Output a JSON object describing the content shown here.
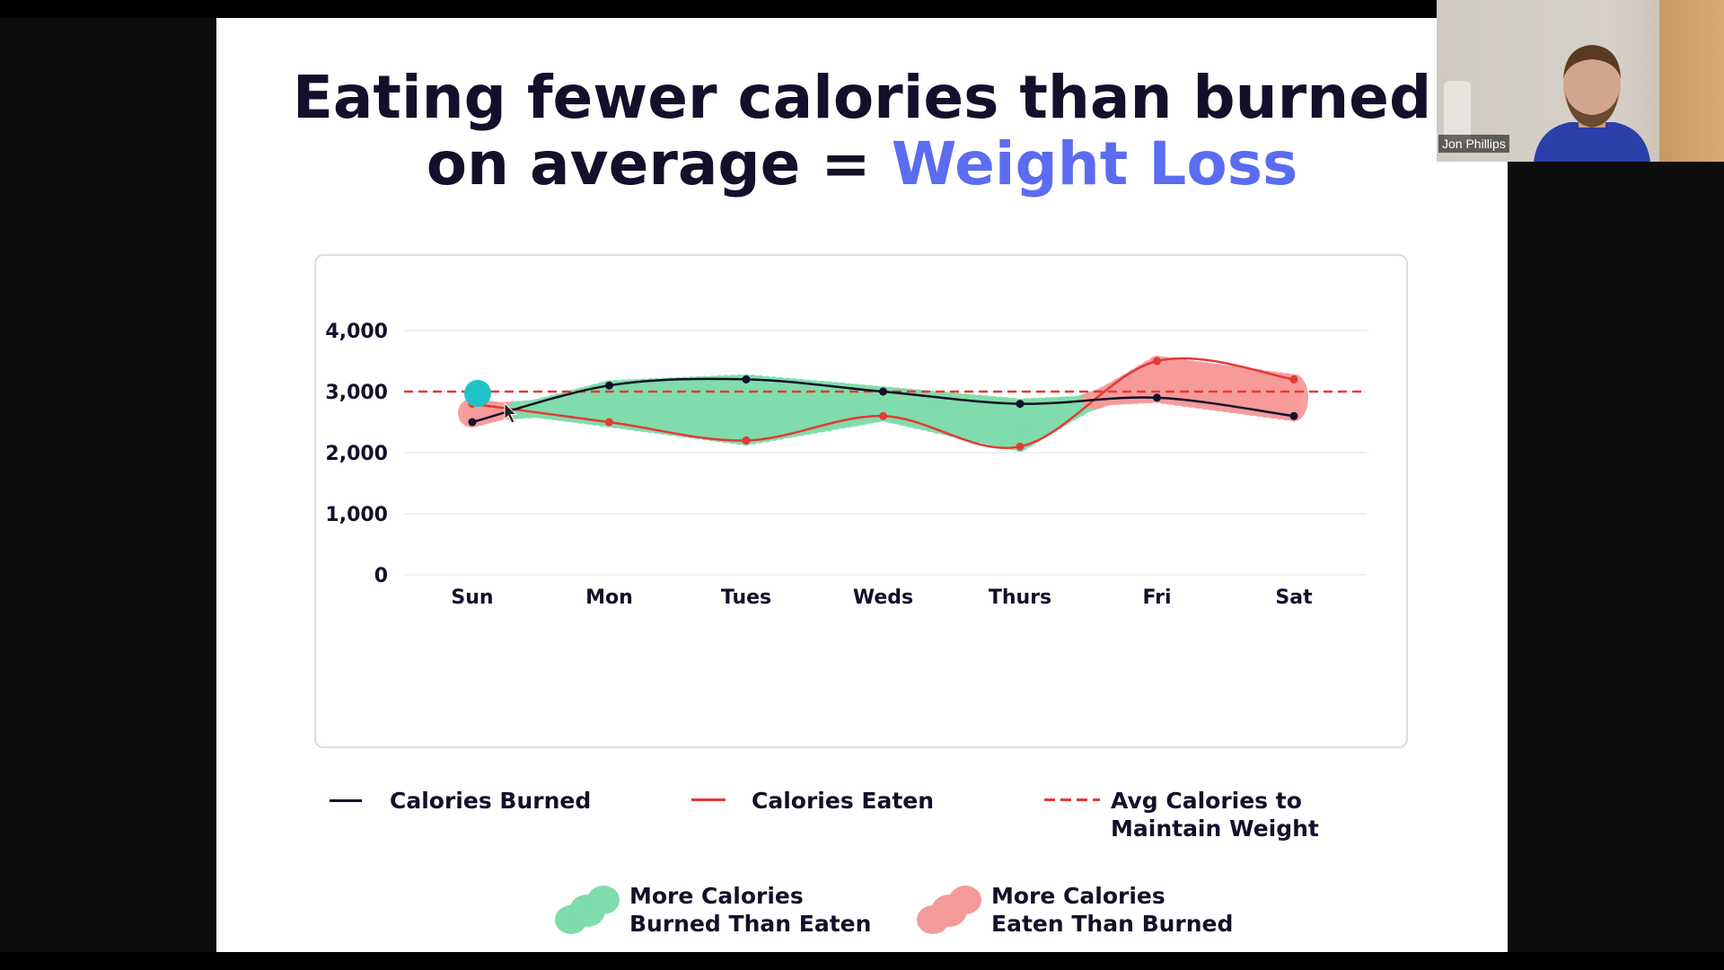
{
  "slide": {
    "title_line1": "Eating fewer calories than burned",
    "title_line2_prefix": "on average = ",
    "title_line2_accent": "Weight Loss"
  },
  "colors": {
    "title": "#12102a",
    "accent": "#5b6cf0",
    "burned": "#12102a",
    "eaten": "#e53935",
    "avg": "#e53935",
    "green_fill": "#7fdcab",
    "pink_fill": "#f59a9a",
    "cursor_dot": "#1fc3c7"
  },
  "chart_data": {
    "type": "line",
    "categories": [
      "Sun",
      "Mon",
      "Tues",
      "Weds",
      "Thurs",
      "Fri",
      "Sat"
    ],
    "yticks": [
      "4,000",
      "3,000",
      "2,000",
      "1,000",
      "0"
    ],
    "ylim": [
      0,
      4000
    ],
    "grid": true,
    "series": [
      {
        "name": "Calories Burned",
        "values": [
          2500,
          3100,
          3200,
          3000,
          2800,
          2900,
          2600
        ]
      },
      {
        "name": "Calories Eaten",
        "values": [
          2800,
          2500,
          2200,
          2600,
          2100,
          3500,
          3200
        ]
      },
      {
        "name": "Avg Calories to Maintain Weight",
        "values": [
          3000,
          3000,
          3000,
          3000,
          3000,
          3000,
          3000
        ],
        "style": "dashed"
      }
    ]
  },
  "legend": {
    "burned": "Calories Burned",
    "eaten": "Calories Eaten",
    "avg_line1": "Avg Calories to",
    "avg_line2": "Maintain Weight",
    "green_line1": "More Calories",
    "green_line2": "Burned Than Eaten",
    "pink_line1": "More Calories",
    "pink_line2": "Eaten Than Burned"
  },
  "participant": {
    "name": "Jon Phillips"
  }
}
